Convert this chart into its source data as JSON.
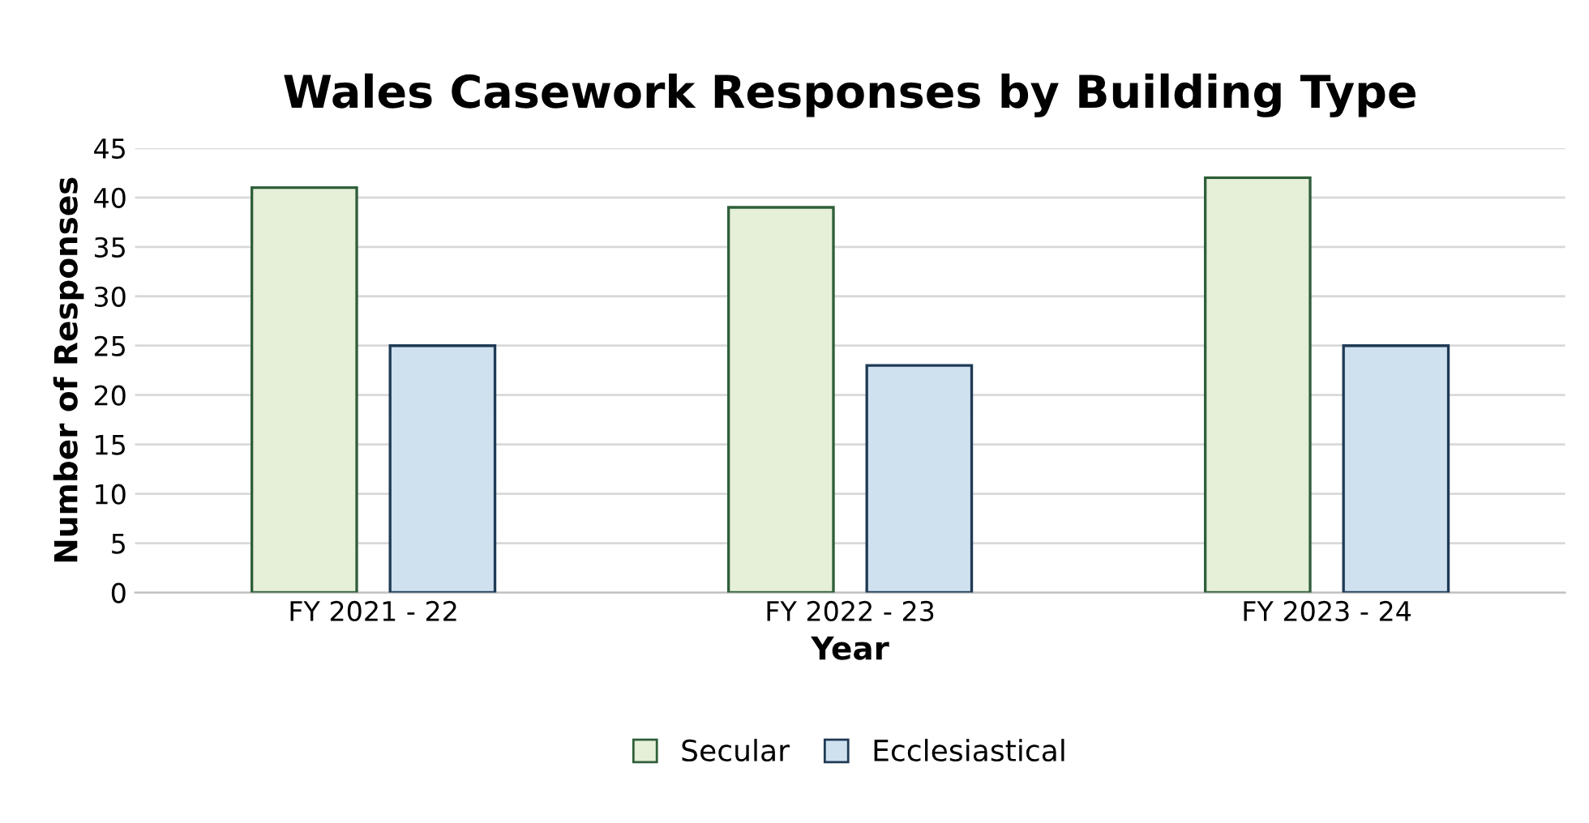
{
  "chart_data": {
    "type": "bar",
    "title": "Wales Casework Responses by Building Type",
    "xlabel": "Year",
    "ylabel": "Number of Responses",
    "categories": [
      "FY 2021 - 22",
      "FY 2022 - 23",
      "FY 2023 - 24"
    ],
    "series": [
      {
        "name": "Secular",
        "color": "#e6efd8",
        "values": [
          41,
          39,
          42
        ]
      },
      {
        "name": "Ecclesiastical",
        "color": "#cfe1ef",
        "values": [
          25,
          23,
          25
        ]
      }
    ],
    "ylim": [
      0,
      45
    ],
    "yticks": [
      0,
      5,
      10,
      15,
      20,
      25,
      30,
      35,
      40,
      45
    ],
    "grid": "y",
    "legend": "bottom"
  }
}
